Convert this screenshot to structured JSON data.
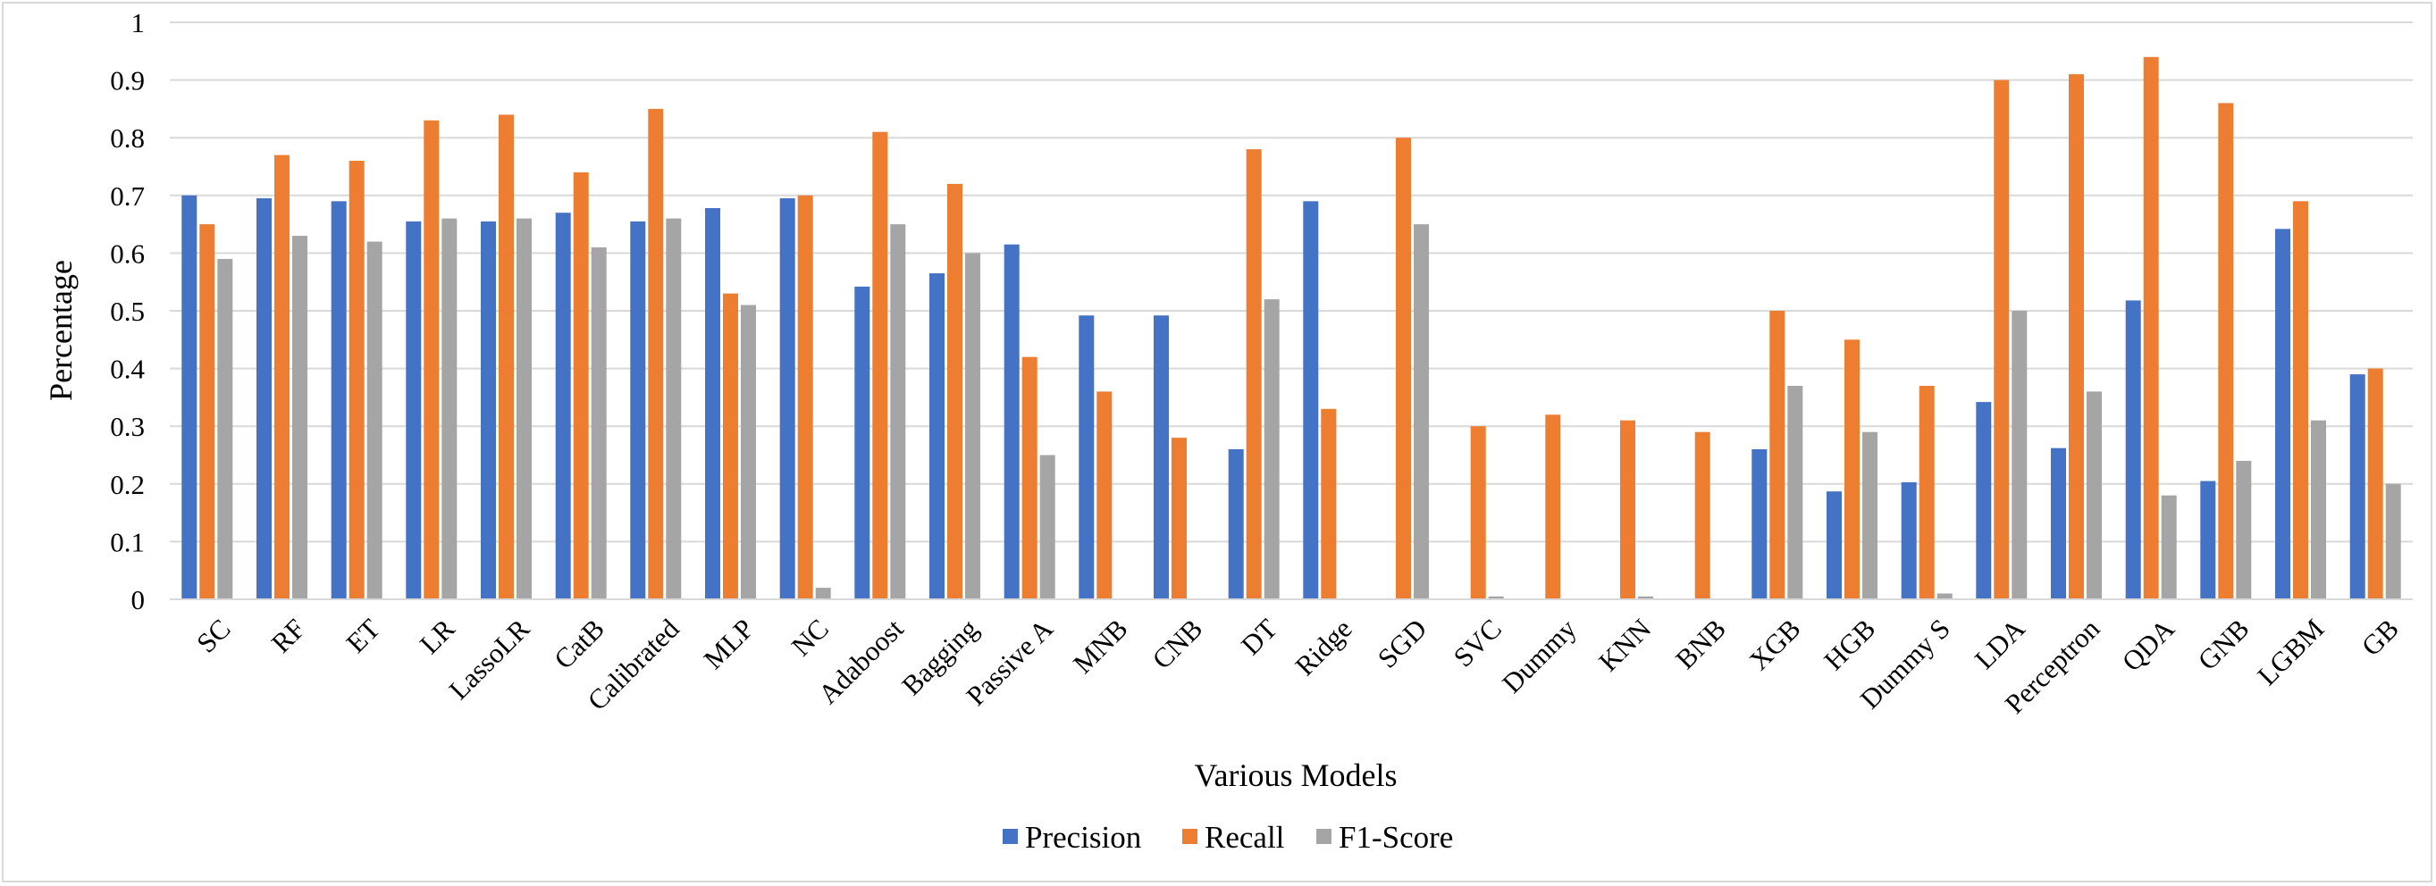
{
  "chart_data": {
    "type": "bar",
    "title": "",
    "xlabel": "Various Models",
    "ylabel": "Percentage",
    "ylim": [
      0,
      1
    ],
    "yticks": [
      "0",
      "0.1",
      "0.2",
      "0.3",
      "0.4",
      "0.5",
      "0.6",
      "0.7",
      "0.8",
      "0.9",
      "1"
    ],
    "grid": true,
    "legend_position": "bottom",
    "categories": [
      "SC",
      "RF",
      "ET",
      "LR",
      "LassoLR",
      "CatB",
      "Calibrated",
      "MLP",
      "NC",
      "Adaboost",
      "Bagging",
      "Passive A",
      "MNB",
      "CNB",
      "DT",
      "Ridge",
      "SGD",
      "SVC",
      "Dummy",
      "KNN",
      "BNB",
      "XGB",
      "HGB",
      "Dummy S",
      "LDA",
      "Perceptron",
      "QDA",
      "GNB",
      "LGBM",
      "GB"
    ],
    "series": [
      {
        "name": "Precision",
        "color": "#4472c4",
        "values": [
          0.7,
          0.695,
          0.69,
          0.655,
          0.655,
          0.67,
          0.655,
          0.678,
          0.695,
          0.542,
          0.565,
          0.615,
          0.492,
          0.492,
          0.26,
          0.69,
          0.0,
          0.0,
          0.0,
          0.0,
          0.0,
          0.26,
          0.187,
          0.203,
          0.342,
          0.262,
          0.518,
          0.205,
          0.642,
          0.39
        ]
      },
      {
        "name": "Recall",
        "color": "#ed7d31",
        "values": [
          0.65,
          0.77,
          0.76,
          0.83,
          0.84,
          0.74,
          0.85,
          0.53,
          0.7,
          0.81,
          0.72,
          0.42,
          0.36,
          0.28,
          0.78,
          0.33,
          0.8,
          0.3,
          0.32,
          0.31,
          0.29,
          0.5,
          0.45,
          0.37,
          0.9,
          0.91,
          0.94,
          0.86,
          0.69,
          0.4
        ]
      },
      {
        "name": "F1-Score",
        "color": "#a5a5a5",
        "values": [
          0.59,
          0.63,
          0.62,
          0.66,
          0.66,
          0.61,
          0.66,
          0.51,
          0.02,
          0.65,
          0.6,
          0.25,
          0.0,
          0.0,
          0.52,
          0.0,
          0.65,
          0.005,
          0.0,
          0.005,
          0.0,
          0.37,
          0.29,
          0.01,
          0.5,
          0.36,
          0.18,
          0.24,
          0.31,
          0.2
        ]
      }
    ]
  }
}
